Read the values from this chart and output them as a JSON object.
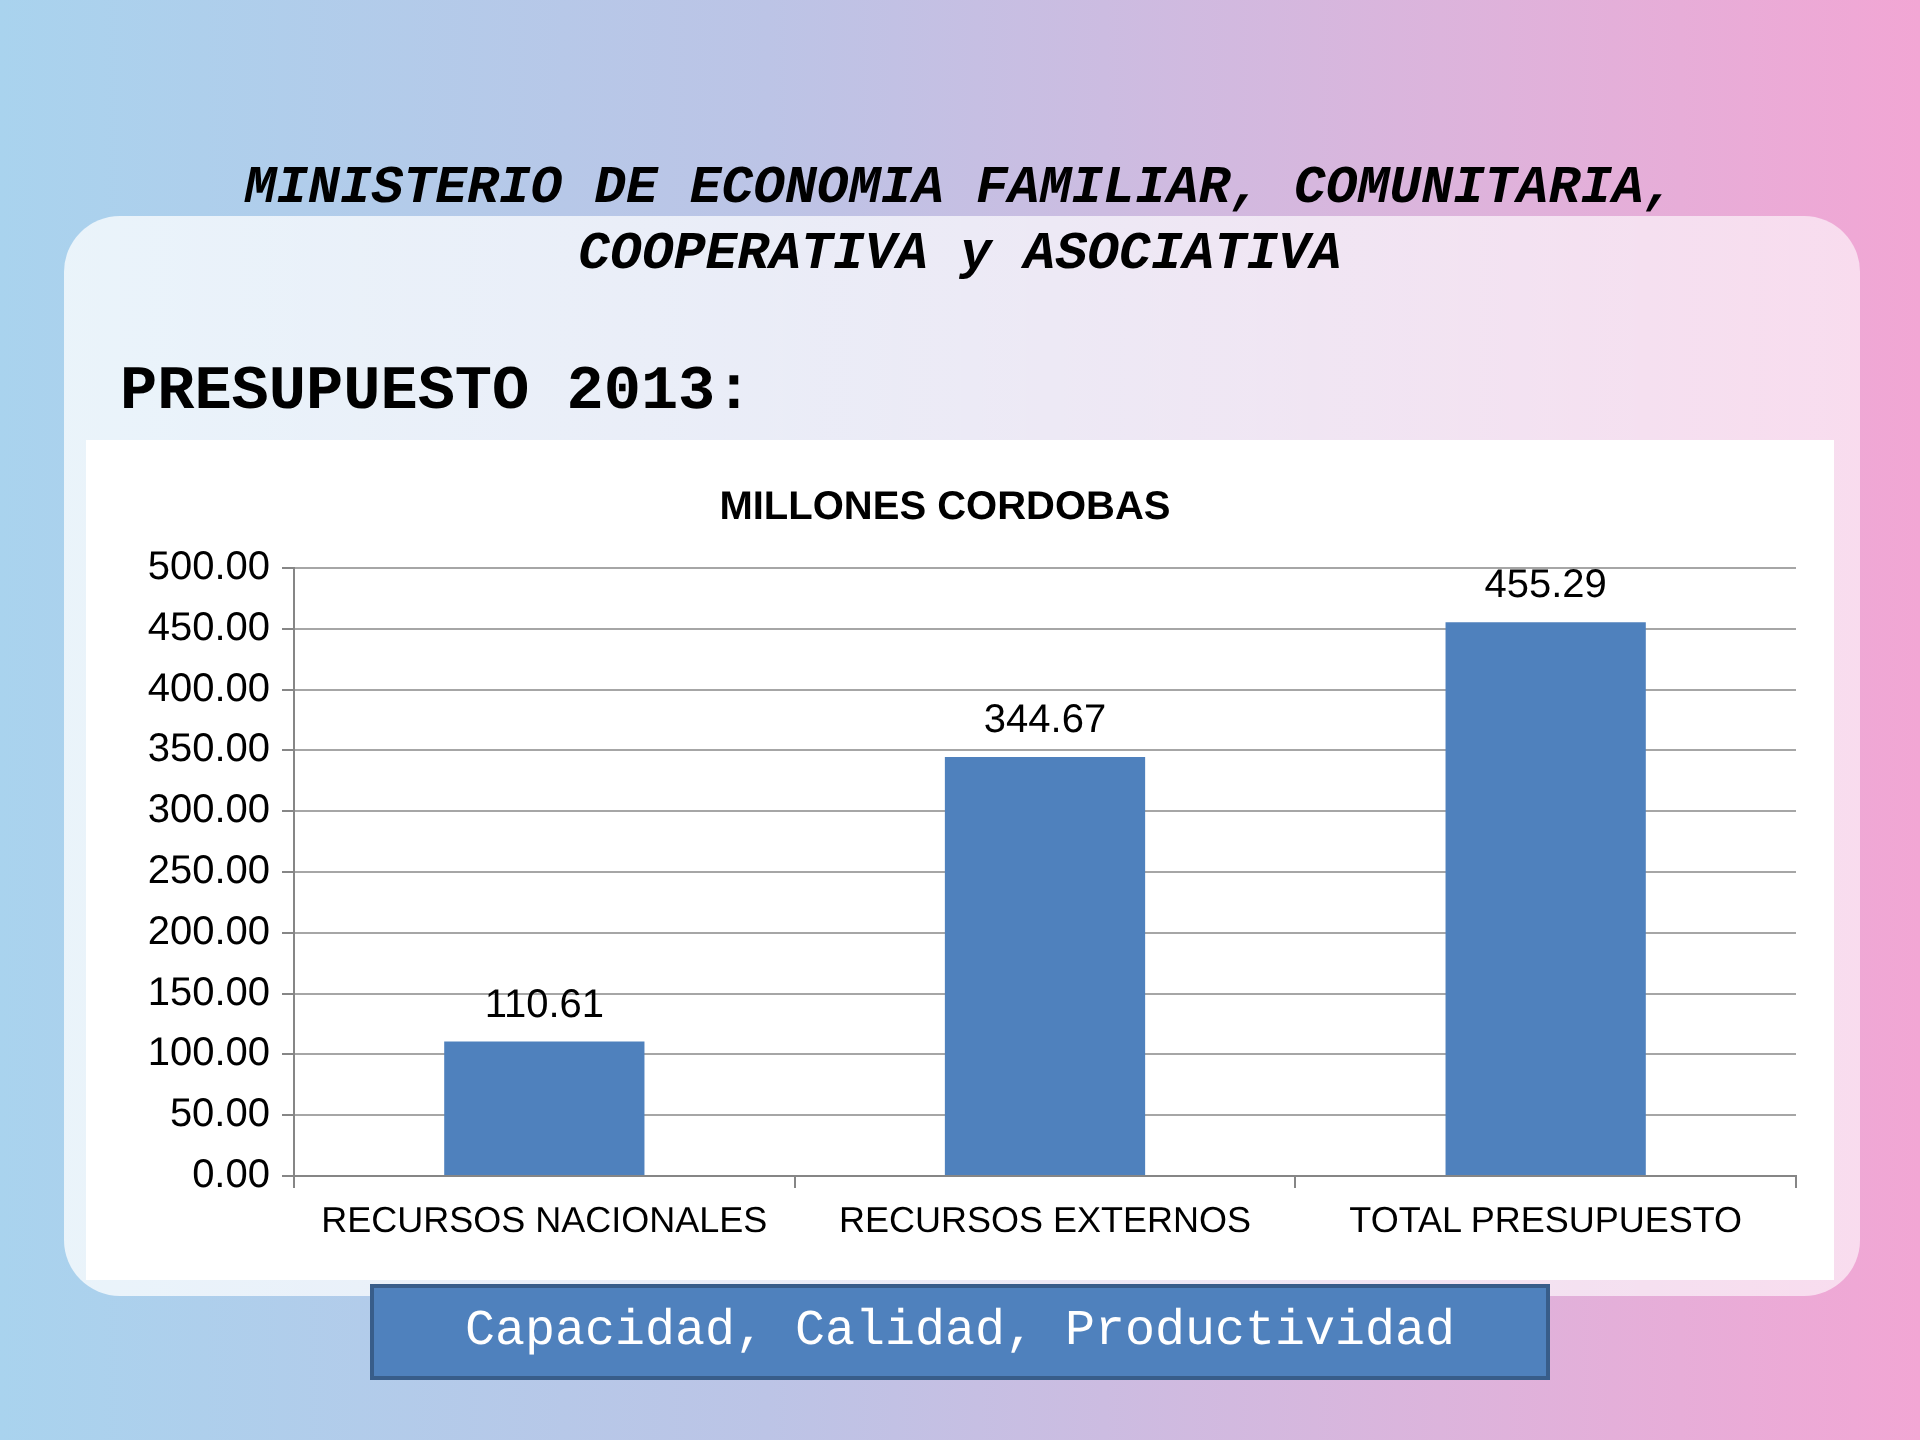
{
  "chart_data": {
    "type": "bar",
    "title": "MILLONES CORDOBAS",
    "subtitle": "PRESUPUESTO 2013:",
    "annotations": [
      "MINISTERIO DE ECONOMIA FAMILIAR, COMUNITARIA, COOPERATIVA y ASOCIATIVA",
      "Capacidad, Calidad, Productividad"
    ],
    "categories": [
      "RECURSOS NACIONALES",
      "RECURSOS EXTERNOS",
      "TOTAL PRESUPUESTO"
    ],
    "values": [
      110.61,
      344.67,
      455.29
    ],
    "color": "#4f81bd",
    "ylim": [
      0,
      500
    ],
    "yticks": [
      {
        "value": 0,
        "label": "0.00"
      },
      {
        "value": 50,
        "label": "50.00"
      },
      {
        "value": 100,
        "label": "100.00"
      },
      {
        "value": 150,
        "label": "150.00"
      },
      {
        "value": 200,
        "label": "200.00"
      },
      {
        "value": 250,
        "label": "250.00"
      },
      {
        "value": 300,
        "label": "300.00"
      },
      {
        "value": 350,
        "label": "350.00"
      },
      {
        "value": 400,
        "label": "400.00"
      },
      {
        "value": 450,
        "label": "450.00"
      },
      {
        "value": 500,
        "label": "500.00"
      }
    ],
    "grid": "y",
    "legend": false,
    "data_labels": true
  }
}
